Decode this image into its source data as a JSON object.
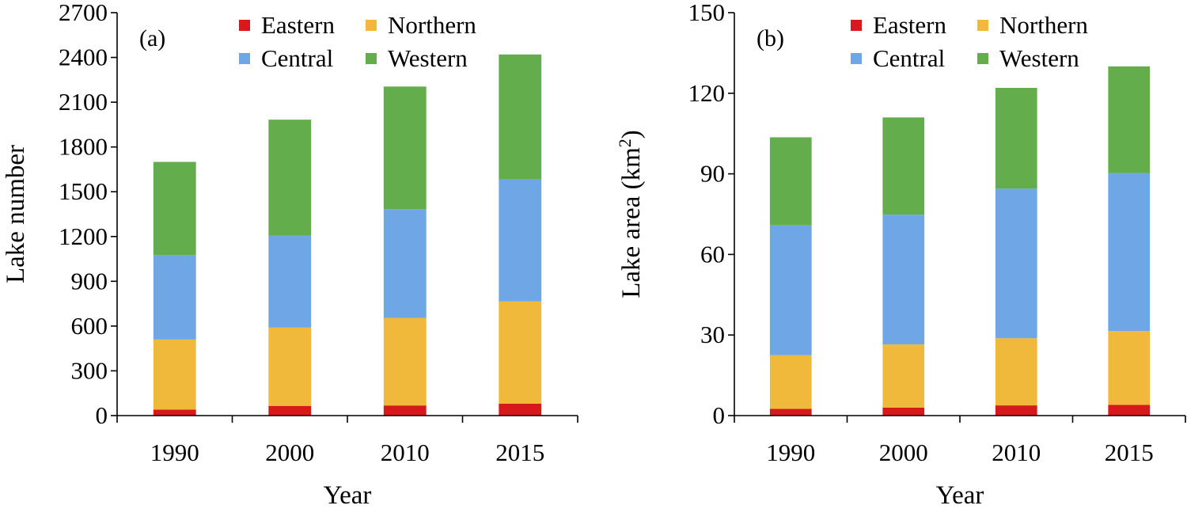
{
  "colors": {
    "Eastern": "#d7191c",
    "Northern": "#f0b93c",
    "Central": "#6ea6e6",
    "Western": "#63ad4c",
    "axis": "#000000"
  },
  "chart_data": [
    {
      "type": "bar",
      "stacked": true,
      "panel_label": "(a)",
      "xlabel": "Year",
      "ylabel": "Lake number",
      "categories": [
        "1990",
        "2000",
        "2010",
        "2015"
      ],
      "ylim": [
        0,
        2700
      ],
      "yticks": [
        "0",
        "300",
        "600",
        "900",
        "1200",
        "1500",
        "1800",
        "2100",
        "2400",
        "2700"
      ],
      "legend_position": "top",
      "series": [
        {
          "name": "Eastern",
          "values": [
            40,
            65,
            68,
            80
          ]
        },
        {
          "name": "Northern",
          "values": [
            470,
            525,
            587,
            685
          ]
        },
        {
          "name": "Central",
          "values": [
            565,
            615,
            728,
            817
          ]
        },
        {
          "name": "Western",
          "values": [
            625,
            778,
            822,
            838
          ]
        }
      ]
    },
    {
      "type": "bar",
      "stacked": true,
      "panel_label": "(b)",
      "xlabel": "Year",
      "ylabel": "Lake area (km²)",
      "categories": [
        "1990",
        "2000",
        "2010",
        "2015"
      ],
      "ylim": [
        0,
        150
      ],
      "yticks": [
        "0",
        "30",
        "60",
        "90",
        "120",
        "150"
      ],
      "legend_position": "top",
      "series": [
        {
          "name": "Eastern",
          "values": [
            2.5,
            3.0,
            3.8,
            4.0
          ]
        },
        {
          "name": "Northern",
          "values": [
            20.0,
            23.5,
            25.0,
            27.5
          ]
        },
        {
          "name": "Central",
          "values": [
            48.3,
            48.3,
            55.7,
            58.8
          ]
        },
        {
          "name": "Western",
          "values": [
            32.8,
            36.2,
            37.5,
            39.7
          ]
        }
      ]
    }
  ]
}
